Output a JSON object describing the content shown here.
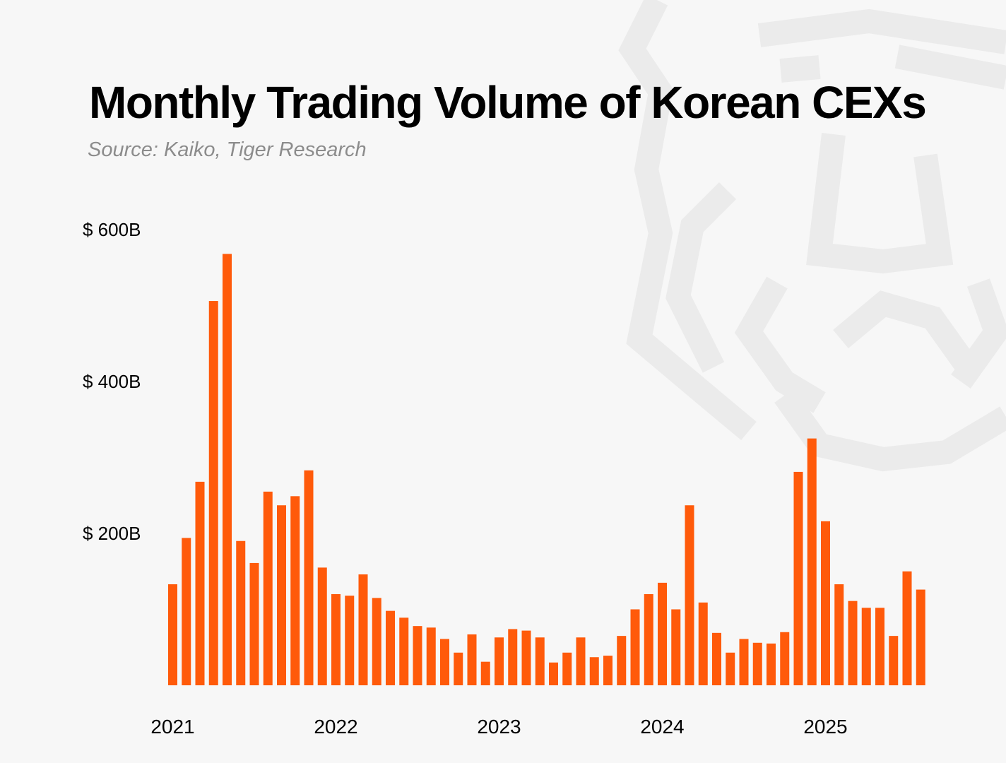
{
  "title": "Monthly Trading Volume of Korean CEXs",
  "subtitle": "Source: Kaiko, Tiger Research",
  "watermark_icon": "tiger-face-icon",
  "colors": {
    "bar": "#ff5a0a",
    "background": "#f7f7f7",
    "watermark": "#ebebeb"
  },
  "chart_data": {
    "type": "bar",
    "title": "Monthly Trading Volume of Korean CEXs",
    "subtitle": "Source: Kaiko, Tiger Research",
    "xlabel": "",
    "ylabel": "",
    "unit": "Billion USD",
    "ylim": [
      0,
      600
    ],
    "yticks": [
      {
        "value": 200,
        "label": "$ 200B"
      },
      {
        "value": 400,
        "label": "$ 400B"
      },
      {
        "value": 600,
        "label": "$ 600B"
      }
    ],
    "xticks": [
      {
        "index": 0,
        "label": "2021"
      },
      {
        "index": 12,
        "label": "2022"
      },
      {
        "index": 24,
        "label": "2023"
      },
      {
        "index": 36,
        "label": "2024"
      },
      {
        "index": 48,
        "label": "2025"
      }
    ],
    "grid": false,
    "categories": [
      "2021-01",
      "2021-02",
      "2021-03",
      "2021-04",
      "2021-05",
      "2021-06",
      "2021-07",
      "2021-08",
      "2021-09",
      "2021-10",
      "2021-11",
      "2021-12",
      "2022-01",
      "2022-02",
      "2022-03",
      "2022-04",
      "2022-05",
      "2022-06",
      "2022-07",
      "2022-08",
      "2022-09",
      "2022-10",
      "2022-11",
      "2022-12",
      "2023-01",
      "2023-02",
      "2023-03",
      "2023-04",
      "2023-05",
      "2023-06",
      "2023-07",
      "2023-08",
      "2023-09",
      "2023-10",
      "2023-11",
      "2023-12",
      "2024-01",
      "2024-02",
      "2024-03",
      "2024-04",
      "2024-05",
      "2024-06",
      "2024-07",
      "2024-08",
      "2024-09",
      "2024-10",
      "2024-11",
      "2024-12",
      "2025-01",
      "2025-02",
      "2025-03",
      "2025-04",
      "2025-05",
      "2025-06",
      "2025-07",
      "2025-08"
    ],
    "values": [
      133,
      194,
      268,
      506,
      568,
      190,
      161,
      255,
      237,
      249,
      283,
      155,
      120,
      118,
      146,
      115,
      98,
      89,
      78,
      76,
      61,
      43,
      67,
      31,
      63,
      74,
      72,
      63,
      30,
      43,
      63,
      37,
      39,
      65,
      100,
      120,
      135,
      100,
      237,
      109,
      69,
      43,
      61,
      56,
      55,
      70,
      281,
      325,
      216,
      133,
      111,
      102,
      102,
      65,
      150,
      126
    ]
  }
}
